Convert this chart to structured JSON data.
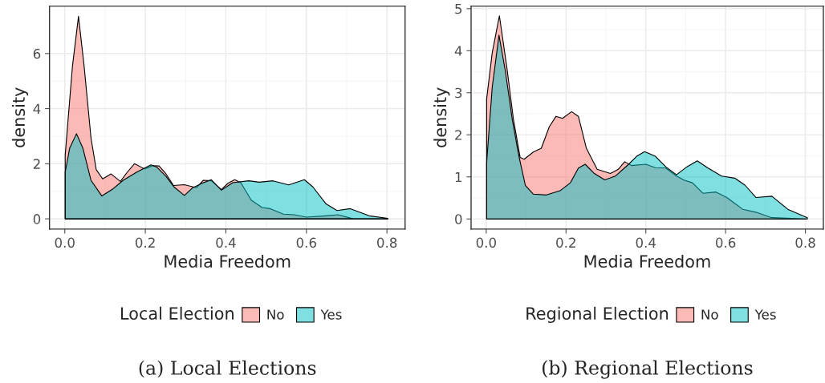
{
  "chart_data": [
    {
      "type": "area",
      "xlabel": "Media Freedom",
      "ylabel": "density",
      "legend_title": "Local Election",
      "legend": "bottom",
      "grid": true,
      "xlim": [
        -0.038,
        0.845
      ],
      "ylim": [
        -0.37,
        7.72
      ],
      "xticks": [
        {
          "value": 0,
          "label": "0.0"
        },
        {
          "value": 0.2,
          "label": "0.2"
        },
        {
          "value": 0.4,
          "label": "0.4"
        },
        {
          "value": 0.6,
          "label": "0.6"
        },
        {
          "value": 0.8,
          "label": "0.8"
        }
      ],
      "yticks": [
        0,
        2,
        4,
        6
      ],
      "series": [
        {
          "name": "No",
          "color": "#F8766D",
          "x": [
            0.001,
            0.019,
            0.034,
            0.048,
            0.065,
            0.078,
            0.094,
            0.115,
            0.138,
            0.155,
            0.173,
            0.198,
            0.218,
            0.234,
            0.251,
            0.27,
            0.297,
            0.327,
            0.344,
            0.364,
            0.389,
            0.405,
            0.422,
            0.437,
            0.463,
            0.49,
            0.51,
            0.543,
            0.57,
            0.6,
            0.649,
            0.679,
            0.716,
            0.756,
            0.802
          ],
          "values": [
            2.32,
            5.54,
            7.35,
            5.54,
            2.94,
            1.79,
            1.45,
            1.63,
            1.36,
            1.69,
            2.0,
            1.81,
            1.93,
            1.92,
            1.64,
            1.21,
            1.24,
            1.13,
            1.4,
            1.38,
            1.06,
            1.29,
            1.42,
            1.31,
            0.68,
            0.41,
            0.37,
            0.17,
            0.15,
            0.06,
            0.11,
            0.15,
            0.0,
            0.0,
            0.0
          ]
        },
        {
          "name": "Yes",
          "color": "#00BFC4",
          "x": [
            0.001,
            0.012,
            0.029,
            0.045,
            0.065,
            0.092,
            0.118,
            0.145,
            0.178,
            0.198,
            0.214,
            0.228,
            0.251,
            0.271,
            0.297,
            0.317,
            0.344,
            0.364,
            0.389,
            0.417,
            0.457,
            0.483,
            0.517,
            0.556,
            0.595,
            0.616,
            0.649,
            0.676,
            0.709,
            0.756,
            0.802
          ],
          "values": [
            1.69,
            2.56,
            3.09,
            2.56,
            1.4,
            0.83,
            1.07,
            1.4,
            1.69,
            1.84,
            1.96,
            1.88,
            1.55,
            1.16,
            0.85,
            1.12,
            1.31,
            1.42,
            1.04,
            1.31,
            1.38,
            1.33,
            1.38,
            1.23,
            1.42,
            1.16,
            0.54,
            0.3,
            0.37,
            0.11,
            0.02
          ]
        }
      ],
      "annotations": [
        "(a) Local Elections"
      ]
    },
    {
      "type": "area",
      "xlabel": "Media Freedom",
      "ylabel": "density",
      "legend_title": "Regional Election",
      "legend": "bottom",
      "grid": true,
      "xlim": [
        -0.038,
        0.845
      ],
      "ylim": [
        -0.24,
        5.06
      ],
      "xticks": [
        {
          "value": 0,
          "label": "0.0"
        },
        {
          "value": 0.2,
          "label": "0.2"
        },
        {
          "value": 0.4,
          "label": "0.4"
        },
        {
          "value": 0.6,
          "label": "0.6"
        },
        {
          "value": 0.8,
          "label": "0.8"
        }
      ],
      "yticks": [
        0,
        1,
        2,
        3,
        4,
        5
      ],
      "series": [
        {
          "name": "No",
          "color": "#F8766D",
          "x": [
            0.001,
            0.015,
            0.033,
            0.052,
            0.068,
            0.085,
            0.095,
            0.118,
            0.138,
            0.158,
            0.175,
            0.191,
            0.214,
            0.231,
            0.251,
            0.278,
            0.311,
            0.331,
            0.347,
            0.364,
            0.4,
            0.424,
            0.45,
            0.477,
            0.497,
            0.517,
            0.543,
            0.576,
            0.603,
            0.643,
            0.676,
            0.716,
            0.802
          ],
          "values": [
            2.85,
            3.95,
            4.83,
            3.58,
            2.38,
            1.46,
            1.42,
            1.59,
            1.68,
            2.19,
            2.44,
            2.39,
            2.55,
            2.44,
            1.68,
            1.18,
            1.08,
            1.18,
            1.36,
            1.27,
            1.3,
            1.22,
            1.21,
            1.02,
            0.92,
            0.86,
            0.61,
            0.64,
            0.51,
            0.23,
            0.16,
            0.03,
            0.0
          ]
        },
        {
          "name": "Yes",
          "color": "#00BFC4",
          "x": [
            0.001,
            0.015,
            0.032,
            0.048,
            0.065,
            0.082,
            0.098,
            0.118,
            0.151,
            0.185,
            0.211,
            0.231,
            0.248,
            0.271,
            0.297,
            0.324,
            0.357,
            0.377,
            0.397,
            0.424,
            0.45,
            0.477,
            0.503,
            0.529,
            0.556,
            0.59,
            0.623,
            0.649,
            0.676,
            0.716,
            0.756,
            0.805
          ],
          "values": [
            1.33,
            3.13,
            4.37,
            3.51,
            2.38,
            1.49,
            0.8,
            0.59,
            0.57,
            0.67,
            0.86,
            1.21,
            1.3,
            1.08,
            0.93,
            1.02,
            1.3,
            1.49,
            1.6,
            1.49,
            1.24,
            1.05,
            1.24,
            1.38,
            1.21,
            1.02,
            0.97,
            0.8,
            0.51,
            0.54,
            0.23,
            0.03
          ]
        }
      ],
      "annotations": [
        "(b) Regional Elections"
      ]
    }
  ]
}
